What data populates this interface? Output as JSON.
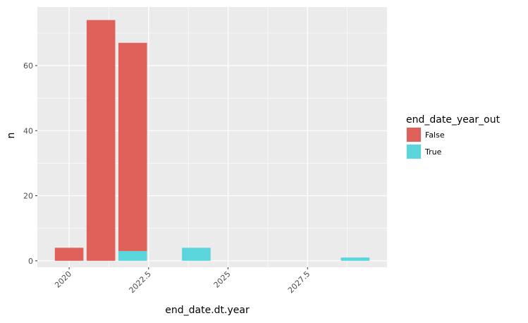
{
  "chart_data": {
    "type": "bar",
    "stacked": true,
    "xlabel": "end_date.dt.year",
    "ylabel": "n",
    "xlim": [
      2019.0,
      2030.0
    ],
    "ylim": [
      -2,
      78
    ],
    "x_ticks": [
      2020,
      2022.5,
      2025,
      2027.5
    ],
    "x_tick_labels": [
      "2020",
      "2022.5",
      "2025",
      "2027.5"
    ],
    "y_ticks": [
      0,
      20,
      40,
      60
    ],
    "y_tick_labels": [
      "0",
      "20",
      "40",
      "60"
    ],
    "bar_width": 0.9,
    "grid": true,
    "legend": {
      "title": "end_date_year_out",
      "position": "right",
      "entries": [
        {
          "label": "False",
          "color": "#E06159"
        },
        {
          "label": "True",
          "color": "#5AD5DB"
        }
      ]
    },
    "series": [
      {
        "name": "False",
        "color": "#E06159",
        "points": [
          {
            "x": 2020,
            "y": 4
          },
          {
            "x": 2021,
            "y": 74
          },
          {
            "x": 2022,
            "y": 64
          }
        ]
      },
      {
        "name": "True",
        "color": "#5AD5DB",
        "points": [
          {
            "x": 2022,
            "y": 3
          },
          {
            "x": 2024,
            "y": 4
          },
          {
            "x": 2029,
            "y": 1
          }
        ]
      }
    ],
    "panel_color": "#EBEBEB",
    "grid_color": "#FFFFFF"
  }
}
